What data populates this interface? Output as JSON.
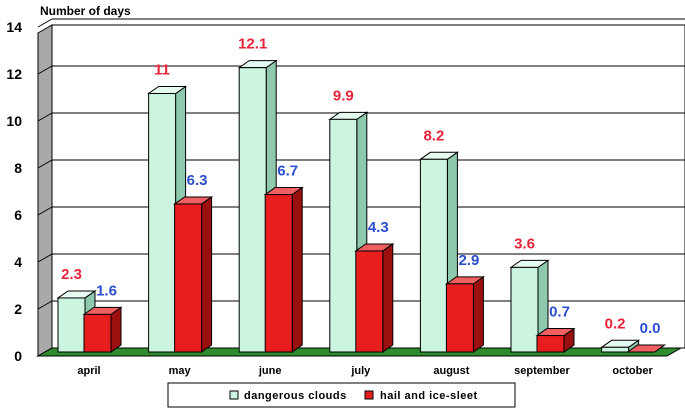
{
  "chart_data": {
    "type": "bar",
    "ylabel": "Number of days",
    "ylim": [
      0,
      14
    ],
    "yticks": [
      0,
      2,
      4,
      6,
      8,
      10,
      12,
      14
    ],
    "categories": [
      "april",
      "may",
      "june",
      "july",
      "august",
      "september",
      "october"
    ],
    "series": [
      {
        "name": "dangerous clouds",
        "values": [
          2.3,
          11,
          12.1,
          9.9,
          8.2,
          3.6,
          0.2
        ],
        "labels": [
          "2.3",
          "11",
          "12.1",
          "9.9",
          "8.2",
          "3.6",
          "0.2"
        ],
        "label_color": "#e8253a",
        "color": "#ccf5e0"
      },
      {
        "name": "hail and ice-sleet",
        "values": [
          1.6,
          6.3,
          6.7,
          4.3,
          2.9,
          0.7,
          0.0
        ],
        "labels": [
          "1.6",
          "6.3",
          "6.7",
          "4.3",
          "2.9",
          "0.7",
          "0.0"
        ],
        "label_color": "#2b4fd0",
        "color": "#e81e1e"
      }
    ],
    "grid": true,
    "legend_position": "bottom",
    "floor_color": "#2e8b2e",
    "wall_color": "#a9a9a9"
  }
}
